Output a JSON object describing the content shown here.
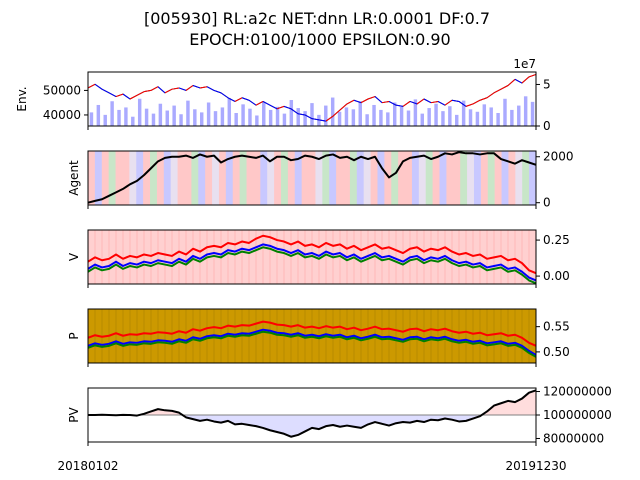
{
  "figure": {
    "title_line1": "[005930] RL:a2c NET:dnn LR:0.0001 DF:0.7",
    "title_line2": "EPOCH:0100/1000 EPSILON:0.90",
    "x_start_label": "20180102",
    "x_end_label": "20191230"
  },
  "chart_data": [
    {
      "type": "line",
      "panel": "env",
      "ylabel": "Env.",
      "ylim": [
        35500,
        57500
      ],
      "yticks": [
        "50000",
        "40000"
      ],
      "ytick_values": [
        50000,
        40000
      ],
      "right_axis": {
        "ylim": [
          0,
          65000000
        ],
        "yticks": [
          "5",
          "0"
        ],
        "ytick_values": [
          50000000,
          0
        ],
        "offset_text": "1e7"
      },
      "series": [
        {
          "kind": "price",
          "color": "#000000",
          "values": [
            51000,
            52500,
            50500,
            49000,
            47500,
            48500,
            46500,
            48000,
            49500,
            50000,
            51500,
            49000,
            50500,
            51000,
            50000,
            52000,
            51000,
            51500,
            50000,
            49000,
            47000,
            45500,
            47000,
            46000,
            44000,
            45500,
            44000,
            42500,
            43500,
            42500,
            40500,
            40000,
            38500,
            38000,
            37500,
            39500,
            42000,
            44500,
            46000,
            45000,
            46500,
            47500,
            45000,
            45500,
            44000,
            43500,
            45500,
            44500,
            46500,
            45000,
            45500,
            44000,
            46000,
            45500,
            43500,
            44500,
            46000,
            47000,
            49000,
            50500,
            52000,
            54500,
            53000,
            55500,
            56500
          ]
        },
        {
          "kind": "volume",
          "color": "#aaaaff",
          "values": [
            22,
            34,
            18,
            40,
            26,
            30,
            15,
            44,
            28,
            20,
            36,
            25,
            33,
            19,
            41,
            27,
            22,
            38,
            24,
            30,
            45,
            21,
            35,
            28,
            17,
            39,
            26,
            31,
            20,
            42,
            29,
            24,
            37,
            18,
            33,
            46,
            23,
            30,
            27,
            40,
            19,
            34,
            26,
            22,
            38,
            31,
            25,
            43,
            20,
            29,
            36,
            24,
            32,
            18,
            41,
            27,
            23,
            35,
            30,
            21,
            44,
            26,
            33,
            48,
            39
          ]
        }
      ]
    },
    {
      "type": "line",
      "panel": "agent",
      "ylabel": "Agent",
      "ylim": [
        -100,
        2250
      ],
      "yticks": [
        "2000",
        "0"
      ],
      "ytick_values": [
        2000,
        0
      ],
      "background": {
        "colors": [
          "#ffc8c8",
          "#c8c8ff",
          "#c8e6c8",
          "#e8e0f0"
        ],
        "pattern": [
          0,
          1,
          0,
          2,
          0,
          0,
          3,
          1,
          0,
          2,
          0,
          1,
          3,
          0,
          0,
          2,
          1,
          0,
          3,
          0,
          1,
          0,
          2,
          0,
          0,
          1,
          3,
          0,
          2,
          0,
          1,
          0,
          0,
          3,
          2,
          1,
          0,
          0,
          2,
          1,
          3,
          0,
          1,
          0,
          2,
          0,
          0,
          1,
          3,
          2,
          0,
          1,
          0,
          0,
          2,
          3,
          1,
          0,
          2,
          0,
          1,
          0,
          3,
          2,
          1
        ]
      },
      "series": [
        {
          "name": "",
          "color": "#000000",
          "values": [
            0,
            80,
            150,
            300,
            450,
            600,
            800,
            950,
            1200,
            1500,
            1800,
            1950,
            2000,
            2000,
            2050,
            1950,
            2100,
            2000,
            2050,
            1750,
            1900,
            2000,
            2050,
            2000,
            1950,
            2050,
            1800,
            2000,
            2000,
            1850,
            1900,
            2050,
            2000,
            1900,
            2050,
            2100,
            1950,
            2000,
            1850,
            2000,
            1900,
            2000,
            1500,
            1100,
            1300,
            1800,
            1950,
            2000,
            2050,
            1900,
            2000,
            2150,
            2100,
            2200,
            2150,
            2150,
            2100,
            2150,
            2150,
            1900,
            1800,
            1700,
            1850,
            1750,
            1650
          ]
        }
      ]
    },
    {
      "type": "line",
      "panel": "v",
      "ylabel": "V",
      "ylim": [
        -0.055,
        0.32
      ],
      "yticks": [
        "0.25",
        "0.00"
      ],
      "ytick_values": [
        0.25,
        0.0
      ],
      "background": {
        "colors": [
          "#ffd0d0"
        ]
      },
      "series": [
        {
          "name": "",
          "color": "#ff0000",
          "values": [
            0.1,
            0.13,
            0.11,
            0.12,
            0.15,
            0.12,
            0.14,
            0.13,
            0.15,
            0.14,
            0.16,
            0.15,
            0.14,
            0.17,
            0.15,
            0.19,
            0.17,
            0.2,
            0.21,
            0.2,
            0.23,
            0.22,
            0.24,
            0.23,
            0.26,
            0.28,
            0.27,
            0.25,
            0.24,
            0.22,
            0.24,
            0.21,
            0.22,
            0.2,
            0.23,
            0.21,
            0.22,
            0.19,
            0.21,
            0.18,
            0.2,
            0.22,
            0.19,
            0.2,
            0.18,
            0.16,
            0.19,
            0.2,
            0.17,
            0.19,
            0.18,
            0.2,
            0.17,
            0.15,
            0.16,
            0.14,
            0.15,
            0.12,
            0.13,
            0.14,
            0.11,
            0.12,
            0.09,
            0.04,
            0.02
          ]
        },
        {
          "name": "",
          "color": "#0000ff",
          "values": [
            0.05,
            0.08,
            0.06,
            0.07,
            0.1,
            0.07,
            0.09,
            0.08,
            0.1,
            0.09,
            0.11,
            0.1,
            0.09,
            0.12,
            0.1,
            0.14,
            0.12,
            0.15,
            0.16,
            0.15,
            0.18,
            0.17,
            0.19,
            0.18,
            0.2,
            0.22,
            0.21,
            0.19,
            0.18,
            0.16,
            0.18,
            0.15,
            0.16,
            0.14,
            0.17,
            0.15,
            0.16,
            0.13,
            0.15,
            0.12,
            0.14,
            0.16,
            0.13,
            0.14,
            0.12,
            0.1,
            0.13,
            0.14,
            0.11,
            0.13,
            0.12,
            0.14,
            0.11,
            0.09,
            0.1,
            0.08,
            0.09,
            0.06,
            0.07,
            0.08,
            0.05,
            0.06,
            0.03,
            -0.01,
            -0.03
          ]
        },
        {
          "name": "",
          "color": "#008000",
          "values": [
            0.03,
            0.06,
            0.04,
            0.05,
            0.08,
            0.05,
            0.07,
            0.06,
            0.08,
            0.07,
            0.09,
            0.08,
            0.07,
            0.1,
            0.08,
            0.12,
            0.1,
            0.13,
            0.14,
            0.13,
            0.16,
            0.15,
            0.17,
            0.16,
            0.18,
            0.2,
            0.19,
            0.17,
            0.16,
            0.14,
            0.16,
            0.13,
            0.14,
            0.12,
            0.15,
            0.13,
            0.14,
            0.11,
            0.13,
            0.1,
            0.12,
            0.14,
            0.11,
            0.12,
            0.1,
            0.08,
            0.11,
            0.12,
            0.09,
            0.11,
            0.1,
            0.12,
            0.09,
            0.07,
            0.08,
            0.06,
            0.07,
            0.04,
            0.05,
            0.06,
            0.03,
            0.04,
            0.01,
            -0.03,
            -0.05
          ]
        }
      ]
    },
    {
      "type": "line",
      "panel": "p",
      "ylabel": "P",
      "ylim": [
        0.478,
        0.585
      ],
      "yticks": [
        "0.55",
        "0.50"
      ],
      "ytick_values": [
        0.55,
        0.5
      ],
      "background": {
        "colors": [
          "#cc9900"
        ]
      },
      "series": [
        {
          "name": "",
          "color": "#ff0000",
          "values": [
            0.528,
            0.533,
            0.53,
            0.532,
            0.537,
            0.532,
            0.535,
            0.534,
            0.537,
            0.536,
            0.539,
            0.538,
            0.536,
            0.541,
            0.538,
            0.545,
            0.542,
            0.547,
            0.549,
            0.547,
            0.552,
            0.55,
            0.553,
            0.552,
            0.556,
            0.56,
            0.558,
            0.554,
            0.553,
            0.55,
            0.553,
            0.548,
            0.55,
            0.547,
            0.551,
            0.548,
            0.55,
            0.545,
            0.548,
            0.543,
            0.546,
            0.55,
            0.545,
            0.546,
            0.543,
            0.54,
            0.545,
            0.546,
            0.541,
            0.545,
            0.543,
            0.546,
            0.541,
            0.538,
            0.54,
            0.536,
            0.538,
            0.533,
            0.535,
            0.537,
            0.532,
            0.534,
            0.528,
            0.518,
            0.512
          ]
        },
        {
          "name": "",
          "color": "#0000ff",
          "values": [
            0.512,
            0.517,
            0.514,
            0.516,
            0.521,
            0.516,
            0.519,
            0.518,
            0.521,
            0.52,
            0.523,
            0.522,
            0.52,
            0.525,
            0.522,
            0.529,
            0.526,
            0.531,
            0.533,
            0.531,
            0.536,
            0.534,
            0.537,
            0.536,
            0.54,
            0.544,
            0.542,
            0.538,
            0.537,
            0.534,
            0.537,
            0.532,
            0.534,
            0.531,
            0.535,
            0.532,
            0.534,
            0.529,
            0.532,
            0.527,
            0.53,
            0.534,
            0.529,
            0.53,
            0.527,
            0.524,
            0.529,
            0.53,
            0.525,
            0.529,
            0.527,
            0.53,
            0.525,
            0.522,
            0.524,
            0.52,
            0.522,
            0.517,
            0.519,
            0.521,
            0.516,
            0.518,
            0.512,
            0.502,
            0.494
          ]
        },
        {
          "name": "",
          "color": "#008000",
          "values": [
            0.508,
            0.513,
            0.51,
            0.512,
            0.517,
            0.512,
            0.515,
            0.514,
            0.517,
            0.516,
            0.519,
            0.518,
            0.516,
            0.521,
            0.518,
            0.525,
            0.522,
            0.527,
            0.529,
            0.527,
            0.532,
            0.53,
            0.533,
            0.532,
            0.536,
            0.54,
            0.538,
            0.534,
            0.533,
            0.53,
            0.533,
            0.528,
            0.53,
            0.527,
            0.531,
            0.528,
            0.53,
            0.525,
            0.528,
            0.523,
            0.526,
            0.53,
            0.525,
            0.526,
            0.523,
            0.52,
            0.525,
            0.526,
            0.521,
            0.525,
            0.523,
            0.526,
            0.521,
            0.518,
            0.52,
            0.516,
            0.518,
            0.513,
            0.515,
            0.517,
            0.512,
            0.514,
            0.508,
            0.498,
            0.49
          ]
        }
      ]
    },
    {
      "type": "area",
      "panel": "pv",
      "ylabel": "PV",
      "ylim": [
        77000000,
        123000000
      ],
      "yticks": [
        "120000000",
        "100000000",
        "80000000"
      ],
      "ytick_values": [
        120000000,
        100000000,
        80000000
      ],
      "baseline": 100000000,
      "fill_above": "#ffdddd",
      "fill_below": "#ddddff",
      "series": [
        {
          "name": "",
          "color": "#000000",
          "values": [
            100000000,
            100000000,
            100200000,
            100000000,
            99800000,
            100100000,
            100000000,
            99500000,
            101000000,
            103000000,
            105000000,
            104000000,
            103500000,
            102000000,
            98000000,
            96500000,
            95000000,
            96000000,
            94500000,
            93500000,
            95000000,
            92000000,
            92500000,
            91500000,
            90500000,
            89000000,
            87000000,
            85500000,
            84000000,
            81500000,
            83000000,
            86000000,
            89000000,
            88000000,
            90500000,
            91500000,
            90000000,
            91000000,
            90000000,
            89000000,
            92000000,
            94000000,
            92500000,
            91000000,
            93000000,
            94000000,
            93500000,
            95000000,
            94000000,
            96000000,
            95500000,
            97000000,
            96000000,
            94500000,
            95000000,
            97000000,
            99000000,
            103000000,
            108000000,
            110000000,
            112000000,
            111000000,
            114000000,
            119000000,
            121000000
          ]
        }
      ]
    }
  ]
}
